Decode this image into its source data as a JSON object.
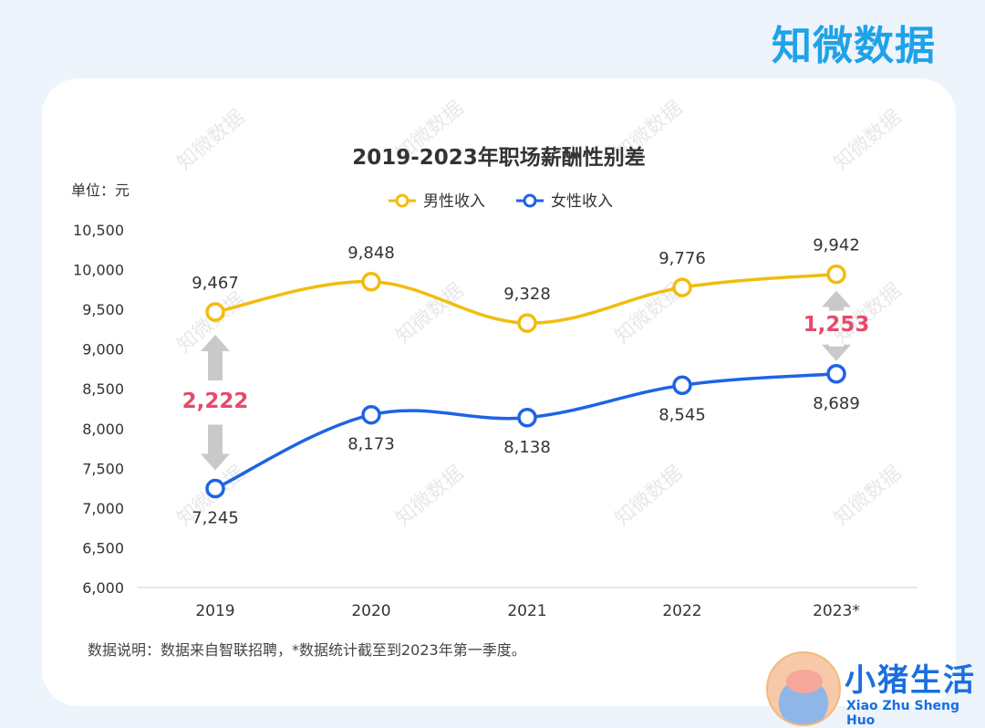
{
  "brand": "知微数据",
  "unit_label": "单位：元",
  "note": "数据说明：数据来自智联招聘，*数据统计截至到2023年第一季度。",
  "watermark_text": "知微数据",
  "footer": {
    "logo_cn": "小猪生活",
    "logo_en": "Xiao Zhu Sheng Huo"
  },
  "colors": {
    "male": "#f2bc0e",
    "female": "#1e63e6",
    "gap": "#e64a6a",
    "arrow": "#c9c9c9",
    "text": "#333333"
  },
  "chart_data": {
    "type": "line",
    "title": "2019-2023年职场薪酬性别差",
    "categories": [
      "2019",
      "2020",
      "2021",
      "2022",
      "2023*"
    ],
    "ylim": [
      6000,
      10500
    ],
    "yticks": [
      "6,000",
      "6,500",
      "7,000",
      "7,500",
      "8,000",
      "8,500",
      "9,000",
      "9,500",
      "10,000",
      "10,500"
    ],
    "legend_position": "top-center",
    "series": [
      {
        "name": "男性收入",
        "values": [
          9467,
          9848,
          9328,
          9776,
          9942
        ],
        "labels": [
          "9,467",
          "9,848",
          "9,328",
          "9,776",
          "9,942"
        ]
      },
      {
        "name": "女性收入",
        "values": [
          7245,
          8173,
          8138,
          8545,
          8689
        ],
        "labels": [
          "7,245",
          "8,173",
          "8,138",
          "8,545",
          "8,689"
        ]
      }
    ],
    "annotations": [
      {
        "category": "2019",
        "text": "2,222"
      },
      {
        "category": "2023*",
        "text": "1,253"
      }
    ]
  }
}
